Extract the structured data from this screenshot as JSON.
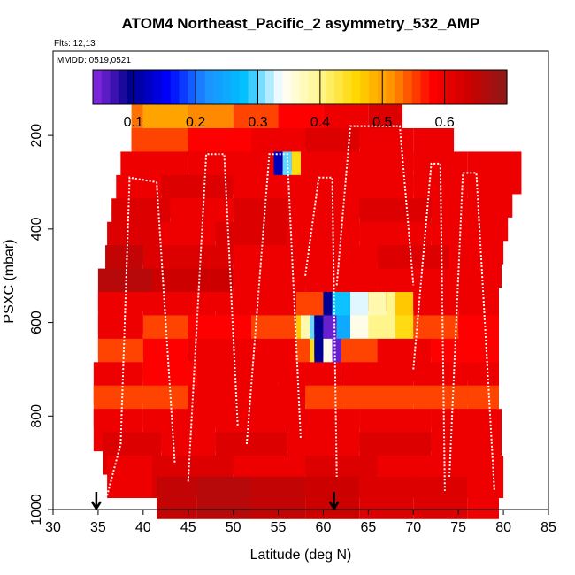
{
  "chart_data": {
    "type": "heatmap",
    "title": "ATOM4 Northeast_Pacific_2 asymmetry_532_AMP",
    "annotations": [
      "Flts: 12,13",
      "MMDD: 0519,0521"
    ],
    "xlabel": "Latitude (deg N)",
    "ylabel": "PSXC (mbar)",
    "xlim": [
      30,
      85
    ],
    "ylim": [
      1000,
      20
    ],
    "y_reversed": true,
    "x_ticks": [
      "30",
      "35",
      "40",
      "45",
      "50",
      "55",
      "60",
      "65",
      "70",
      "75",
      "80",
      "85"
    ],
    "y_ticks": [
      "200",
      "400",
      "600",
      "800",
      "1000"
    ],
    "colorbar": {
      "range": [
        0.035,
        0.7
      ],
      "ticks": [
        "0.1",
        "0.2",
        "0.3",
        "0.4",
        "0.5",
        "0.6"
      ],
      "colors": [
        "#8a2be2",
        "#00008b",
        "#0000ff",
        "#1e90ff",
        "#00bfff",
        "#ffffff",
        "#fff68f",
        "#ffd700",
        "#ff8c00",
        "#ff0000",
        "#cd0000",
        "#8b1a1a"
      ]
    },
    "bands": [
      {
        "p": 180,
        "x0": 38.7,
        "x1": 68.8,
        "segments": [
          [
            38.7,
            0.53
          ],
          [
            40,
            0.5
          ],
          [
            45,
            0.52
          ],
          [
            50,
            0.55
          ],
          [
            55,
            0.58
          ],
          [
            60,
            0.6
          ],
          [
            65,
            0.62
          ]
        ]
      },
      {
        "p": 230,
        "x0": 38.7,
        "x1": 74.5,
        "segments": [
          [
            38.7,
            0.55
          ],
          [
            45,
            0.58
          ],
          [
            52,
            0.6
          ],
          [
            58,
            0.62
          ],
          [
            64,
            0.6
          ],
          [
            70,
            0.6
          ]
        ]
      },
      {
        "p": 280,
        "x0": 37.5,
        "x1": 82,
        "segments": [
          [
            37.5,
            0.6
          ],
          [
            45,
            0.6
          ],
          [
            54.5,
            0.12
          ],
          [
            55.5,
            0.3
          ],
          [
            56.5,
            0.45
          ],
          [
            57.5,
            0.6
          ],
          [
            63,
            0.6
          ],
          [
            70,
            0.6
          ],
          [
            76,
            0.6
          ]
        ]
      },
      {
        "p": 330,
        "x0": 37,
        "x1": 81,
        "segments": [
          [
            37,
            0.6
          ],
          [
            42,
            0.62
          ],
          [
            50,
            0.6
          ],
          [
            56,
            0.6
          ],
          [
            62,
            0.6
          ],
          [
            70,
            0.6
          ],
          [
            76,
            0.6
          ]
        ]
      },
      {
        "p": 380,
        "x0": 36.5,
        "x1": 80.5,
        "segments": [
          [
            36.5,
            0.62
          ],
          [
            43,
            0.6
          ],
          [
            50,
            0.62
          ],
          [
            56,
            0.6
          ],
          [
            64,
            0.62
          ],
          [
            72,
            0.6
          ]
        ]
      },
      {
        "p": 430,
        "x0": 36,
        "x1": 80,
        "segments": [
          [
            36,
            0.62
          ],
          [
            42,
            0.6
          ],
          [
            48,
            0.62
          ],
          [
            56,
            0.6
          ],
          [
            64,
            0.6
          ],
          [
            72,
            0.6
          ]
        ]
      },
      {
        "p": 480,
        "x0": 35.8,
        "x1": 79.8,
        "segments": [
          [
            35.8,
            0.65
          ],
          [
            40,
            0.62
          ],
          [
            50,
            0.6
          ],
          [
            58,
            0.6
          ],
          [
            66,
            0.62
          ],
          [
            74,
            0.6
          ]
        ]
      },
      {
        "p": 530,
        "x0": 35,
        "x1": 79.5,
        "segments": [
          [
            35,
            0.66
          ],
          [
            41,
            0.64
          ],
          [
            50,
            0.6
          ],
          [
            58,
            0.6
          ],
          [
            66,
            0.6
          ],
          [
            74,
            0.6
          ]
        ]
      },
      {
        "p": 580,
        "x0": 35,
        "x1": 79.5,
        "segments": [
          [
            35,
            0.6
          ],
          [
            40,
            0.6
          ],
          [
            48,
            0.6
          ],
          [
            57,
            0.55
          ],
          [
            60,
            0.1
          ],
          [
            61,
            0.28
          ],
          [
            63,
            0.33
          ],
          [
            65,
            0.38
          ],
          [
            67,
            0.4
          ],
          [
            68,
            0.47
          ],
          [
            70,
            0.6
          ],
          [
            75,
            0.6
          ]
        ]
      },
      {
        "p": 630,
        "x0": 35,
        "x1": 79.5,
        "segments": [
          [
            35,
            0.6
          ],
          [
            40,
            0.55
          ],
          [
            45,
            0.58
          ],
          [
            52,
            0.55
          ],
          [
            57,
            0.47
          ],
          [
            57.5,
            0.38
          ],
          [
            58.5,
            0.3
          ],
          [
            59,
            0.1
          ],
          [
            60,
            0.05
          ],
          [
            61.5,
            0.25
          ],
          [
            63,
            0.35
          ],
          [
            65,
            0.4
          ],
          [
            68,
            0.45
          ],
          [
            70,
            0.55
          ],
          [
            75,
            0.58
          ]
        ]
      },
      {
        "p": 680,
        "x0": 35,
        "x1": 79.5,
        "segments": [
          [
            35,
            0.55
          ],
          [
            40,
            0.58
          ],
          [
            45,
            0.6
          ],
          [
            52,
            0.6
          ],
          [
            57,
            0.55
          ],
          [
            58.5,
            0.45
          ],
          [
            59,
            0.1
          ],
          [
            60,
            0.35
          ],
          [
            61,
            0.05
          ],
          [
            62,
            0.55
          ],
          [
            66,
            0.6
          ],
          [
            72,
            0.58
          ]
        ]
      },
      {
        "p": 730,
        "x0": 34.5,
        "x1": 79.5,
        "segments": [
          [
            34.5,
            0.6
          ],
          [
            40,
            0.58
          ],
          [
            46,
            0.6
          ],
          [
            55,
            0.6
          ],
          [
            62,
            0.6
          ],
          [
            70,
            0.6
          ],
          [
            76,
            0.6
          ]
        ]
      },
      {
        "p": 780,
        "x0": 34.5,
        "x1": 79.5,
        "segments": [
          [
            34.5,
            0.55
          ],
          [
            40,
            0.55
          ],
          [
            45,
            0.6
          ],
          [
            52,
            0.6
          ],
          [
            58,
            0.55
          ],
          [
            62,
            0.55
          ],
          [
            70,
            0.55
          ],
          [
            76,
            0.55
          ]
        ]
      },
      {
        "p": 830,
        "x0": 34.5,
        "x1": 79.8,
        "segments": [
          [
            34.5,
            0.6
          ],
          [
            40,
            0.6
          ],
          [
            48,
            0.6
          ],
          [
            56,
            0.6
          ],
          [
            64,
            0.6
          ],
          [
            72,
            0.6
          ]
        ]
      },
      {
        "p": 880,
        "x0": 35.5,
        "x1": 79.8,
        "segments": [
          [
            35.5,
            0.62
          ],
          [
            42,
            0.6
          ],
          [
            48,
            0.62
          ],
          [
            56,
            0.6
          ],
          [
            64,
            0.62
          ],
          [
            72,
            0.6
          ]
        ]
      },
      {
        "p": 930,
        "x0": 36,
        "x1": 80,
        "segments": [
          [
            36,
            0.6
          ],
          [
            41,
            0.62
          ],
          [
            50,
            0.6
          ],
          [
            58,
            0.62
          ],
          [
            66,
            0.6
          ],
          [
            74,
            0.6
          ]
        ]
      },
      {
        "p": 975,
        "x0": 41.5,
        "x1": 79.5,
        "segments": [
          [
            41.5,
            0.65
          ],
          [
            46,
            0.66
          ],
          [
            52,
            0.65
          ],
          [
            58,
            0.64
          ],
          [
            64,
            0.62
          ],
          [
            70,
            0.62
          ],
          [
            76,
            0.6
          ]
        ]
      }
    ],
    "markers": [
      {
        "x": 34.8,
        "p": 1000
      },
      {
        "x": 61.2,
        "p": 1000
      }
    ]
  }
}
